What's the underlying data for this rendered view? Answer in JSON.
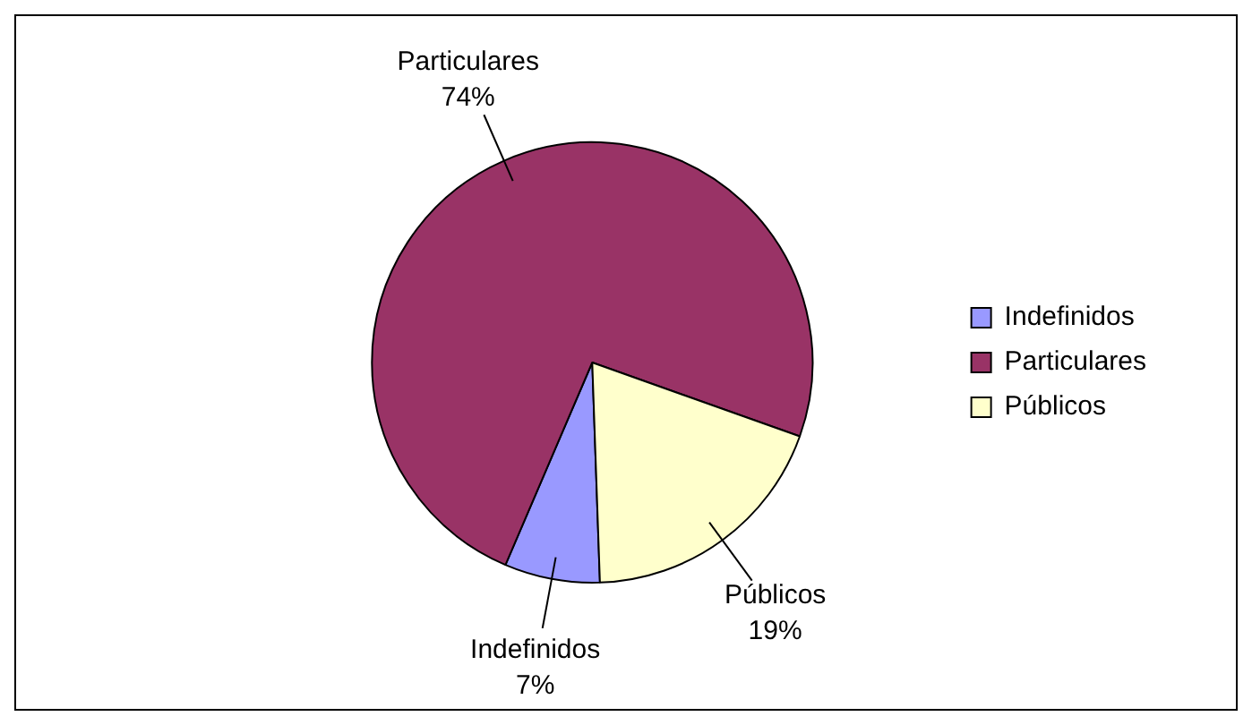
{
  "chart_data": {
    "type": "pie",
    "categories": [
      "Indefinidos",
      "Particulares",
      "Públicos"
    ],
    "values": [
      7,
      74,
      19
    ],
    "colors": [
      "#9999ff",
      "#993366",
      "#ffffcc"
    ],
    "value_labels": [
      "7%",
      "74%",
      "19%"
    ],
    "legend": "right"
  }
}
